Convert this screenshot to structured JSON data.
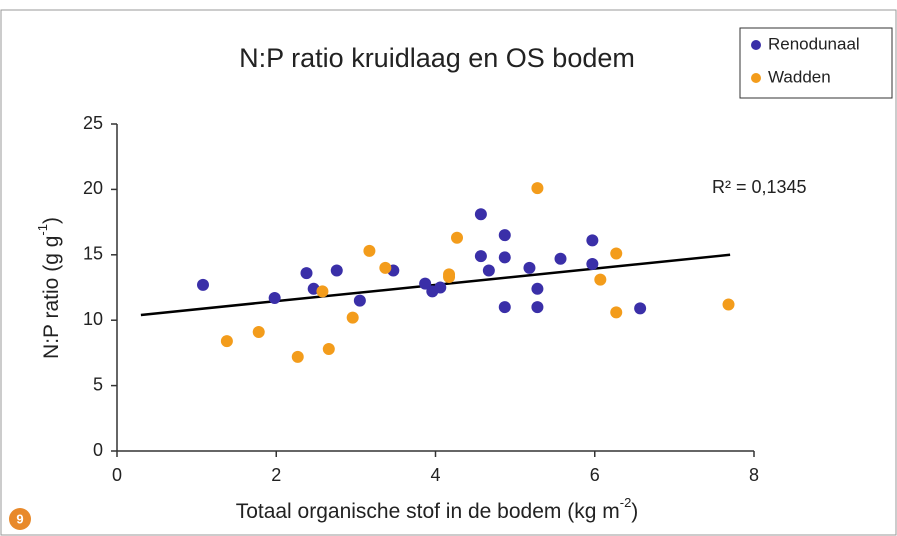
{
  "chart_data": {
    "type": "scatter",
    "title": "N:P ratio kruidlaag en OS bodem",
    "xlabel": [
      "Totaal organische stof in de bodem (kg m",
      "-2",
      ")"
    ],
    "ylabel": [
      "N:P ratio (g g",
      "-1",
      ")"
    ],
    "annotation": "R² = 0,1345",
    "figure_number": "9",
    "xlim": [
      0,
      8
    ],
    "xticks": [
      0,
      2,
      4,
      6,
      8
    ],
    "ylim": [
      0,
      25
    ],
    "yticks": [
      0,
      5,
      10,
      15,
      20,
      25
    ],
    "legend": "top-right",
    "series": [
      {
        "name": "Renodunaal",
        "color": "#3a2fa8",
        "x": [
          1.08,
          1.98,
          2.38,
          2.47,
          2.76,
          3.05,
          3.47,
          3.87,
          3.96,
          4.06,
          4.57,
          4.57,
          4.67,
          4.87,
          4.87,
          4.87,
          5.18,
          5.28,
          5.28,
          5.57,
          5.97,
          5.97,
          6.57
        ],
        "values": [
          12.7,
          11.7,
          13.6,
          12.4,
          13.8,
          11.5,
          13.8,
          12.8,
          12.2,
          12.5,
          18.1,
          14.9,
          13.8,
          16.5,
          14.8,
          11.0,
          14.0,
          12.4,
          11.0,
          14.7,
          16.1,
          14.3,
          10.9
        ]
      },
      {
        "name": "Wadden",
        "color": "#f39c1b",
        "x": [
          1.38,
          1.78,
          2.27,
          2.58,
          2.66,
          2.96,
          3.17,
          3.37,
          4.17,
          4.17,
          4.27,
          5.28,
          6.07,
          6.27,
          6.27,
          7.68
        ],
        "values": [
          8.4,
          9.1,
          7.2,
          12.2,
          7.8,
          10.2,
          15.3,
          14.0,
          13.3,
          13.5,
          16.3,
          20.1,
          13.1,
          15.1,
          10.6,
          11.2
        ]
      }
    ],
    "trendline": {
      "color": "#000000",
      "x": [
        0.3,
        7.7
      ],
      "y": [
        10.4,
        15.0
      ]
    }
  }
}
